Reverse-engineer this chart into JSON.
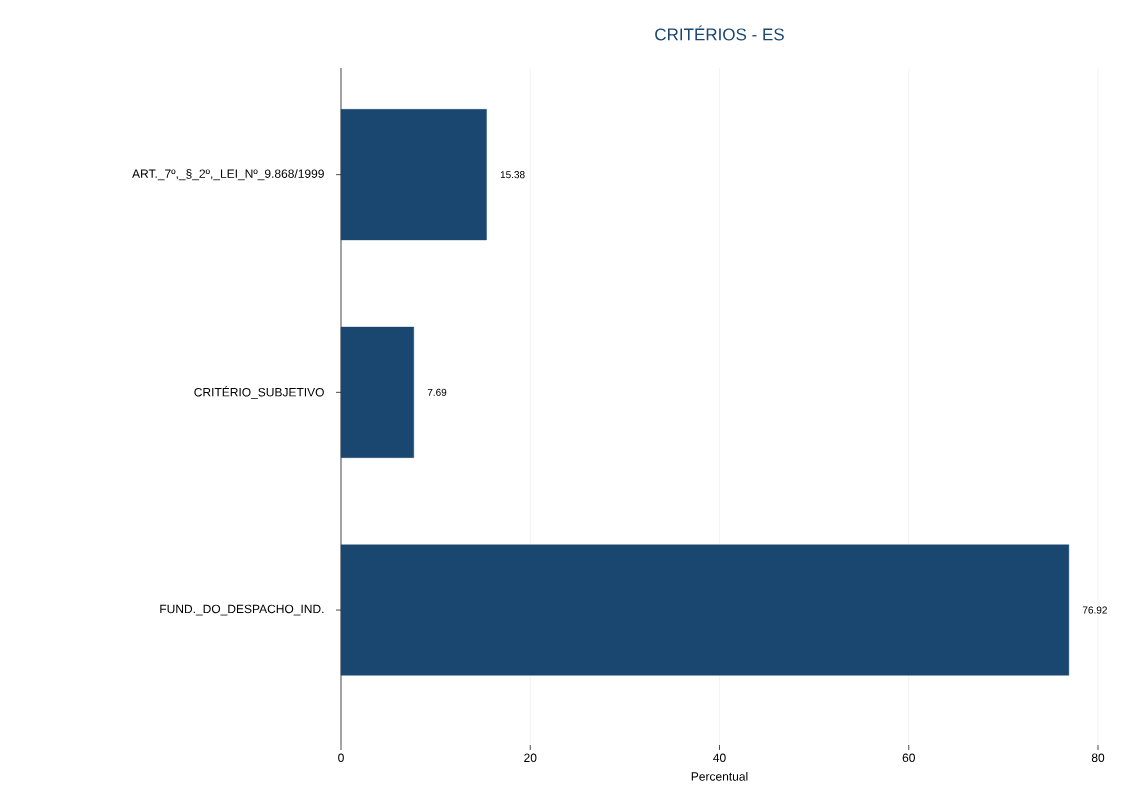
{
  "chart_data": {
    "type": "bar",
    "orientation": "horizontal",
    "title": "CRITÉRIOS - ES",
    "xlabel": "Percentual",
    "categories": [
      "ART._7º,_§_2º,_LEI_Nº_9.868/1999",
      "CRITÉRIO_SUBJETIVO",
      "FUND._DO_DESPACHO_IND."
    ],
    "values": [
      15.38,
      7.69,
      76.92
    ],
    "color": "#1a476f",
    "xlim": [
      0,
      80
    ],
    "xticks": [
      0,
      20,
      40,
      60,
      80
    ],
    "grid": "x",
    "data_labels": true
  }
}
